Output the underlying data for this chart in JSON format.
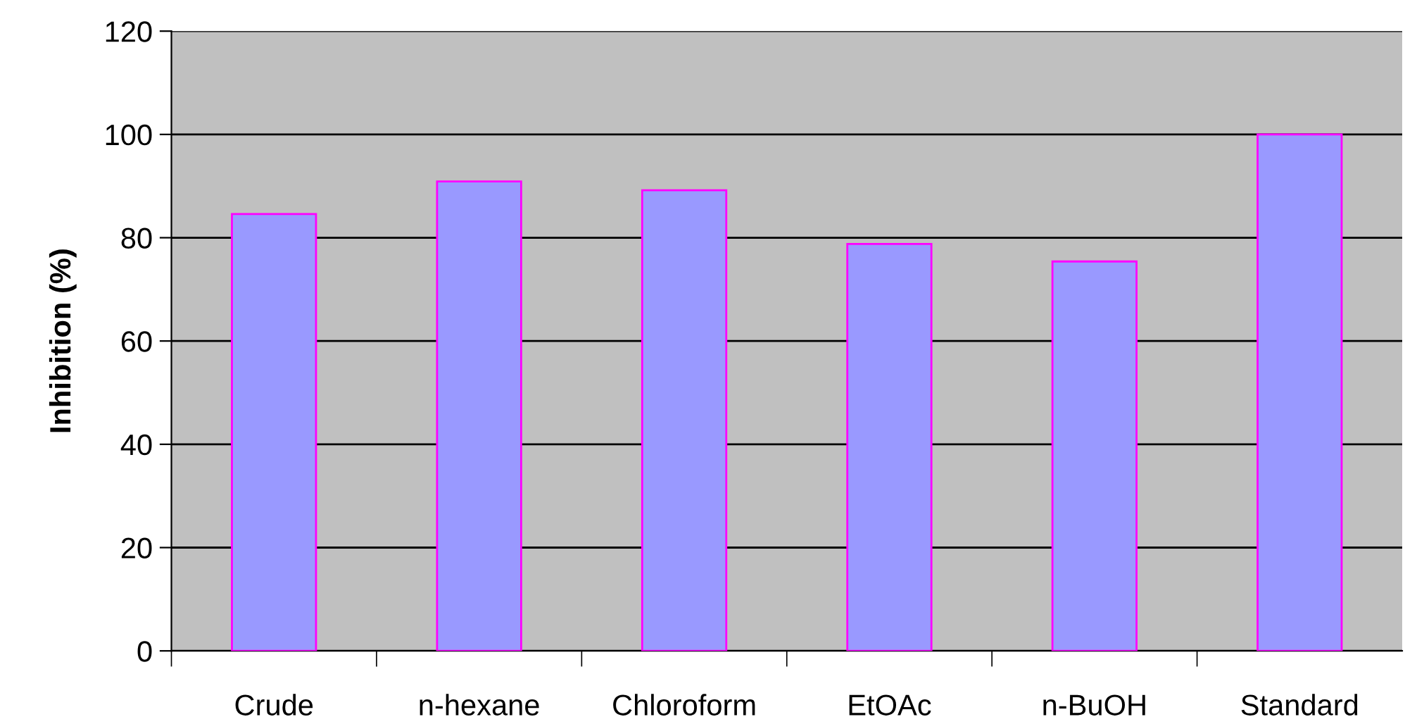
{
  "chart_data": {
    "type": "bar",
    "ylabel": "Inhibition (%)",
    "categories": [
      "Crude",
      "n-hexane",
      "Chloroform",
      "EtOAc",
      "n-BuOH",
      "Standard"
    ],
    "series": [
      {
        "color": "#9999ff",
        "values": [
          84.6,
          90.9,
          89.2,
          78.8,
          75.4,
          100
        ]
      }
    ],
    "ylim": [
      0,
      120
    ],
    "yticks": [
      0,
      20,
      40,
      60,
      80,
      100,
      120
    ],
    "grid": "y",
    "legend": false
  }
}
